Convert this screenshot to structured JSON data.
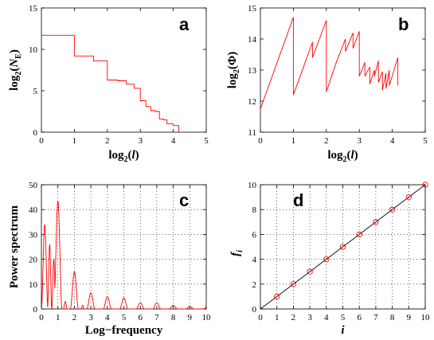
{
  "colors": {
    "series": "#ff0000",
    "reference_line": "#000000",
    "axes": "#000000",
    "grid": "#000000"
  },
  "chart_data": [
    {
      "panel": "a",
      "type": "line",
      "step": true,
      "xlabel": "log2(l)",
      "ylabel": "log2(N_E)",
      "xlim": [
        0,
        5
      ],
      "ylim": [
        0,
        15
      ],
      "xticks": [
        0,
        1,
        2,
        3,
        4,
        5
      ],
      "yticks": [
        0,
        5,
        10,
        15
      ],
      "grid": false,
      "series": [
        {
          "x": [
            0,
            1,
            1,
            1.58,
            1.58,
            2,
            2,
            2.32,
            2.32,
            2.58,
            2.58,
            2.81,
            2.81,
            3,
            3,
            3.17,
            3.17,
            3.32,
            3.32,
            3.46,
            3.46,
            3.58,
            3.58,
            3.7,
            3.7,
            3.81,
            3.81,
            3.91,
            3.91,
            4,
            4,
            4.17,
            4.17
          ],
          "y": [
            11.7,
            11.7,
            9.2,
            9.2,
            8.6,
            8.6,
            6.3,
            6.3,
            6.2,
            6.2,
            5.8,
            5.8,
            5.3,
            5.3,
            3.8,
            3.8,
            3.1,
            3.1,
            2.6,
            2.6,
            2.5,
            2.5,
            1.6,
            1.6,
            1.5,
            1.5,
            1.0,
            1.0,
            1.0,
            1.0,
            0.8,
            0.8,
            0.0
          ]
        }
      ]
    },
    {
      "panel": "b",
      "type": "line",
      "xlabel": "log2(l)",
      "ylabel": "log2(Φ)",
      "xlim": [
        0,
        5
      ],
      "ylim": [
        11,
        15
      ],
      "xticks": [
        0,
        1,
        2,
        3,
        4,
        5
      ],
      "yticks": [
        11,
        12,
        13,
        14,
        15
      ],
      "grid": false,
      "series": [
        {
          "x": [
            0,
            1,
            1,
            1.58,
            1.58,
            2,
            2,
            2.32,
            2.58,
            2.58,
            2.81,
            2.81,
            3,
            3,
            3.17,
            3.17,
            3.32,
            3.32,
            3.46,
            3.46,
            3.58,
            3.58,
            3.7,
            3.7,
            3.81,
            3.81,
            3.91,
            3.91,
            4.17,
            4.17
          ],
          "y": [
            11.75,
            14.7,
            12.2,
            13.9,
            13.4,
            14.6,
            12.3,
            13.3,
            14.0,
            13.6,
            14.2,
            13.7,
            14.25,
            12.8,
            13.25,
            12.8,
            13.1,
            12.55,
            13.0,
            12.8,
            13.3,
            12.6,
            12.95,
            12.35,
            12.9,
            12.4,
            13.0,
            12.5,
            13.4,
            12.5
          ]
        }
      ]
    },
    {
      "panel": "c",
      "type": "line",
      "xlabel": "Log−frequency",
      "ylabel": "Power spectrum",
      "xlim": [
        0,
        10
      ],
      "ylim": [
        0,
        50
      ],
      "xticks": [
        0,
        1,
        2,
        3,
        4,
        5,
        6,
        7,
        8,
        9,
        10
      ],
      "yticks": [
        0,
        10,
        20,
        30,
        40,
        50
      ],
      "grid": true,
      "lobes": [
        {
          "center": 0.2,
          "peak": 34,
          "half_width": 0.2
        },
        {
          "center": 0.5,
          "peak": 26,
          "half_width": 0.13
        },
        {
          "center": 0.75,
          "peak": 20,
          "half_width": 0.12
        },
        {
          "center": 1.0,
          "peak": 43.5,
          "half_width": 0.25
        },
        {
          "center": 1.45,
          "peak": 3,
          "half_width": 0.12
        },
        {
          "center": 2.0,
          "peak": 15,
          "half_width": 0.25
        },
        {
          "center": 2.5,
          "peak": 1.5,
          "half_width": 0.1
        },
        {
          "center": 3.0,
          "peak": 6.5,
          "half_width": 0.25
        },
        {
          "center": 4.0,
          "peak": 5,
          "half_width": 0.25
        },
        {
          "center": 5.0,
          "peak": 4.5,
          "half_width": 0.25
        },
        {
          "center": 6.0,
          "peak": 2.5,
          "half_width": 0.25
        },
        {
          "center": 7.0,
          "peak": 2.5,
          "half_width": 0.25
        },
        {
          "center": 8.0,
          "peak": 1.5,
          "half_width": 0.25
        },
        {
          "center": 9.0,
          "peak": 1,
          "half_width": 0.25
        },
        {
          "center": 10.0,
          "peak": 0.5,
          "half_width": 0.2
        }
      ]
    },
    {
      "panel": "d",
      "type": "scatter",
      "xlabel": "i",
      "ylabel": "f_i",
      "xlim": [
        0,
        10
      ],
      "ylim": [
        0,
        10
      ],
      "xticks": [
        0,
        1,
        2,
        3,
        4,
        5,
        6,
        7,
        8,
        9,
        10
      ],
      "yticks": [
        0,
        2,
        4,
        6,
        8,
        10
      ],
      "grid": true,
      "reference_line": {
        "x": [
          0,
          10
        ],
        "y": [
          0,
          10
        ]
      },
      "series": [
        {
          "x": [
            1,
            2,
            3,
            4,
            5,
            6,
            7,
            8,
            9,
            10
          ],
          "y": [
            1,
            2,
            3,
            4,
            5,
            6,
            7,
            8,
            9,
            10
          ]
        }
      ]
    }
  ]
}
